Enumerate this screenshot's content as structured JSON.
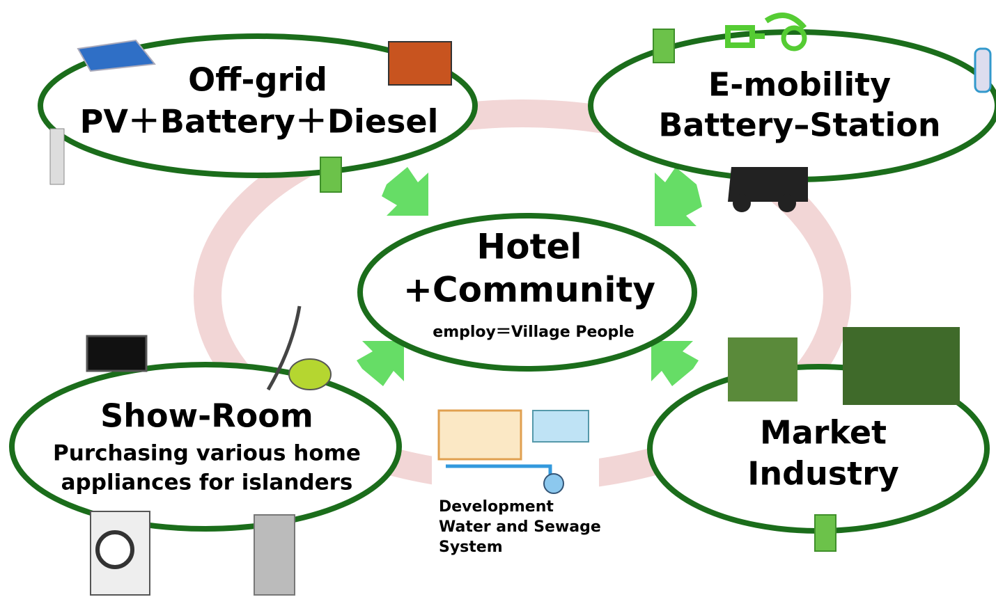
{
  "nodes": [
    {
      "lines": [
        "Off-grid",
        "PV＋Battery＋Diesel"
      ]
    },
    {
      "lines": [
        "E-mobility",
        "Battery–Station"
      ]
    },
    {
      "lines": [
        "Hotel",
        "+Community",
        "employ＝Village People"
      ]
    },
    {
      "lines": [
        "Show-Room",
        "Purchasing various home",
        "appliances for islanders"
      ]
    },
    {
      "lines": [
        "Market",
        "Industry"
      ]
    },
    {
      "lines": [
        "Development",
        "Water and Sewage",
        "System"
      ]
    }
  ]
}
